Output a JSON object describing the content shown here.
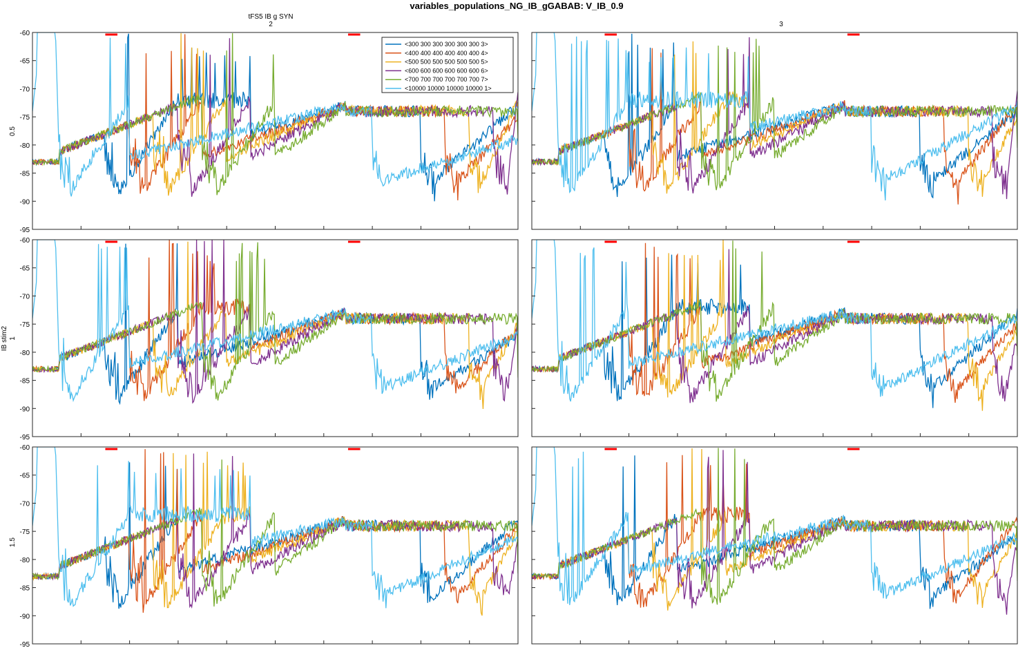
{
  "figure": {
    "title": "variables_populations_NG_IB_gGABAB: V_IB_0.9",
    "col_group_label": "tFS5 IB g SYN",
    "row_group_label": "IB stim2",
    "col_labels": [
      "2",
      "3"
    ],
    "row_labels": [
      "0.5",
      "1",
      "1.5"
    ]
  },
  "colors": {
    "series": [
      "#0072BD",
      "#D95319",
      "#EDB120",
      "#7E2F8E",
      "#77AC30",
      "#4DBEEE"
    ],
    "marker": "#FF0000"
  },
  "chart_data": {
    "type": "line",
    "layout": "3x2 grid of small multiples",
    "xlim": [
      0,
      2000
    ],
    "ylim": [
      -95,
      -60
    ],
    "xticks": [
      0,
      200,
      400,
      600,
      800,
      1000,
      1200,
      1400,
      1600,
      1800,
      2000
    ],
    "yticks": [
      -95,
      -90,
      -85,
      -80,
      -75,
      -70,
      -65,
      -60
    ],
    "legend": {
      "placement": "top-left panel, upper right",
      "entries": [
        "<300 300 300 300 300 300 3>",
        "<400 400 400 400 400 400 4>",
        "<500 500 500 500 500 500 5>",
        "<600 600 600 600 600 600 6>",
        "<700 700 700 700 700 700 7>",
        "<10000 10000 10000 10000 1>"
      ]
    },
    "stim_markers": [
      [
        300,
        350
      ],
      [
        1300,
        1350
      ]
    ],
    "stim_marker_y": -60,
    "burst_onsets": [
      300,
      400,
      500,
      600,
      700,
      100
    ],
    "panels": [
      {
        "row": "0.5",
        "col": "2",
        "plateau_end": [
          -73,
          -75,
          -72,
          -70,
          -72,
          -79
        ]
      },
      {
        "row": "0.5",
        "col": "3",
        "plateau_end": [
          -74,
          -73,
          -75,
          -70,
          -72,
          -73
        ]
      },
      {
        "row": "1",
        "col": "2",
        "plateau_end": [
          -77,
          -76,
          -75,
          -74,
          -73,
          -77
        ]
      },
      {
        "row": "1",
        "col": "3",
        "plateau_end": [
          -73,
          -75,
          -76,
          -77,
          -73,
          -74
        ]
      },
      {
        "row": "1.5",
        "col": "2",
        "plateau_end": [
          -73,
          -74,
          -75,
          -77,
          -74,
          -76
        ]
      },
      {
        "row": "1.5",
        "col": "3",
        "plateau_end": [
          -76,
          -73,
          -75,
          -77,
          -79,
          -76
        ]
      }
    ]
  }
}
